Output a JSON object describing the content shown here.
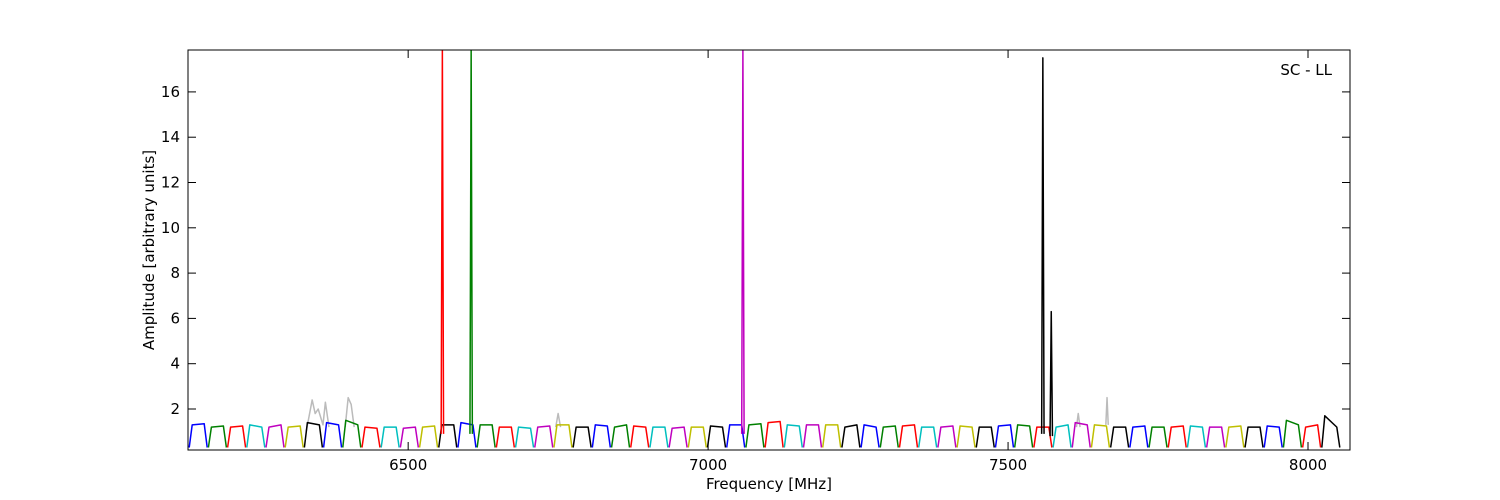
{
  "chart_data": {
    "type": "line",
    "xlabel": "Frequency [MHz]",
    "ylabel": "Amplitude [arbitrary units]",
    "annotation": "SC - LL",
    "xlim": [
      6133,
      8070
    ],
    "ylim": [
      0.19,
      17.85
    ],
    "xticks": [
      6500,
      7000,
      7500,
      8000
    ],
    "yticks": [
      2,
      4,
      6,
      8,
      10,
      12,
      14,
      16
    ],
    "series": [
      {
        "color": "#bbbbbb",
        "x": [
          6330,
          6340,
          6345,
          6350,
          6358,
          6362,
          6368
        ],
        "values": [
          1.0,
          2.4,
          1.8,
          2.0,
          1.3,
          2.3,
          1.2
        ]
      },
      {
        "color": "#bbbbbb",
        "x": [
          6395,
          6400,
          6405,
          6410
        ],
        "values": [
          1.2,
          2.5,
          2.2,
          1.2
        ]
      },
      {
        "color": "#bbbbbb",
        "x": [
          6746,
          6750,
          6754
        ],
        "values": [
          1.2,
          1.8,
          1.2
        ]
      },
      {
        "color": "#bbbbbb",
        "x": [
          7614,
          7617,
          7620
        ],
        "values": [
          1.2,
          1.8,
          1.2
        ]
      },
      {
        "color": "#bbbbbb",
        "x": [
          7663,
          7665,
          7667
        ],
        "values": [
          1.3,
          2.5,
          1.3
        ]
      },
      {
        "color": "#0000ff",
        "x": [
          6135,
          6140,
          6160,
          6165
        ],
        "values": [
          0.3,
          1.3,
          1.35,
          0.3
        ]
      },
      {
        "color": "#008000",
        "x": [
          6167,
          6172,
          6192,
          6197
        ],
        "values": [
          0.3,
          1.2,
          1.25,
          0.3
        ]
      },
      {
        "color": "#ff0000",
        "x": [
          6199,
          6204,
          6224,
          6229
        ],
        "values": [
          0.3,
          1.2,
          1.25,
          0.3
        ]
      },
      {
        "color": "#00bfbf",
        "x": [
          6231,
          6236,
          6256,
          6261
        ],
        "values": [
          0.3,
          1.3,
          1.2,
          0.3
        ]
      },
      {
        "color": "#bf00bf",
        "x": [
          6263,
          6268,
          6288,
          6293
        ],
        "values": [
          0.3,
          1.2,
          1.3,
          0.3
        ]
      },
      {
        "color": "#bfbf00",
        "x": [
          6295,
          6300,
          6320,
          6325
        ],
        "values": [
          0.3,
          1.2,
          1.25,
          0.3
        ]
      },
      {
        "color": "#000000",
        "x": [
          6327,
          6332,
          6352,
          6357
        ],
        "values": [
          0.3,
          1.4,
          1.3,
          0.3
        ]
      },
      {
        "color": "#0000ff",
        "x": [
          6359,
          6364,
          6384,
          6389
        ],
        "values": [
          0.3,
          1.4,
          1.3,
          0.3
        ]
      },
      {
        "color": "#008000",
        "x": [
          6391,
          6396,
          6416,
          6421
        ],
        "values": [
          0.3,
          1.5,
          1.3,
          0.3
        ]
      },
      {
        "color": "#ff0000",
        "x": [
          6423,
          6428,
          6448,
          6453
        ],
        "values": [
          0.3,
          1.2,
          1.15,
          0.3
        ]
      },
      {
        "color": "#00bfbf",
        "x": [
          6455,
          6460,
          6480,
          6485
        ],
        "values": [
          0.3,
          1.2,
          1.2,
          0.3
        ]
      },
      {
        "color": "#bf00bf",
        "x": [
          6487,
          6492,
          6512,
          6517
        ],
        "values": [
          0.3,
          1.15,
          1.2,
          0.3
        ]
      },
      {
        "color": "#bfbf00",
        "x": [
          6519,
          6524,
          6544,
          6549
        ],
        "values": [
          0.3,
          1.2,
          1.25,
          0.3
        ]
      },
      {
        "color": "#000000",
        "x": [
          6551,
          6556,
          6576,
          6581
        ],
        "values": [
          0.3,
          1.3,
          1.3,
          0.3
        ]
      },
      {
        "color": "#0000ff",
        "x": [
          6583,
          6588,
          6608,
          6613
        ],
        "values": [
          0.3,
          1.4,
          1.3,
          0.3
        ]
      },
      {
        "color": "#008000",
        "x": [
          6615,
          6620,
          6640,
          6645
        ],
        "values": [
          0.3,
          1.3,
          1.3,
          0.3
        ]
      },
      {
        "color": "#ff0000",
        "x": [
          6647,
          6652,
          6672,
          6677
        ],
        "values": [
          0.3,
          1.2,
          1.2,
          0.3
        ]
      },
      {
        "color": "#00bfbf",
        "x": [
          6679,
          6684,
          6704,
          6709
        ],
        "values": [
          0.3,
          1.2,
          1.15,
          0.3
        ]
      },
      {
        "color": "#bf00bf",
        "x": [
          6711,
          6716,
          6736,
          6741
        ],
        "values": [
          0.3,
          1.2,
          1.25,
          0.3
        ]
      },
      {
        "color": "#bfbf00",
        "x": [
          6743,
          6748,
          6768,
          6773
        ],
        "values": [
          0.3,
          1.3,
          1.3,
          0.3
        ]
      },
      {
        "color": "#000000",
        "x": [
          6775,
          6780,
          6800,
          6805
        ],
        "values": [
          0.3,
          1.2,
          1.2,
          0.3
        ]
      },
      {
        "color": "#0000ff",
        "x": [
          6807,
          6812,
          6832,
          6837
        ],
        "values": [
          0.3,
          1.3,
          1.25,
          0.3
        ]
      },
      {
        "color": "#008000",
        "x": [
          6839,
          6844,
          6864,
          6869
        ],
        "values": [
          0.3,
          1.2,
          1.3,
          0.3
        ]
      },
      {
        "color": "#ff0000",
        "x": [
          6871,
          6876,
          6896,
          6901
        ],
        "values": [
          0.3,
          1.25,
          1.2,
          0.3
        ]
      },
      {
        "color": "#00bfbf",
        "x": [
          6903,
          6908,
          6928,
          6933
        ],
        "values": [
          0.3,
          1.2,
          1.2,
          0.3
        ]
      },
      {
        "color": "#bf00bf",
        "x": [
          6935,
          6940,
          6960,
          6965
        ],
        "values": [
          0.3,
          1.15,
          1.2,
          0.3
        ]
      },
      {
        "color": "#bfbf00",
        "x": [
          6967,
          6972,
          6992,
          6997
        ],
        "values": [
          0.3,
          1.2,
          1.2,
          0.3
        ]
      },
      {
        "color": "#000000",
        "x": [
          6999,
          7004,
          7024,
          7029
        ],
        "values": [
          0.3,
          1.25,
          1.2,
          0.3
        ]
      },
      {
        "color": "#0000ff",
        "x": [
          7031,
          7036,
          7056,
          7061
        ],
        "values": [
          0.3,
          1.3,
          1.3,
          0.3
        ]
      },
      {
        "color": "#008000",
        "x": [
          7063,
          7068,
          7088,
          7093
        ],
        "values": [
          0.3,
          1.3,
          1.35,
          0.3
        ]
      },
      {
        "color": "#ff0000",
        "x": [
          7095,
          7100,
          7120,
          7125
        ],
        "values": [
          0.3,
          1.4,
          1.45,
          0.3
        ]
      },
      {
        "color": "#00bfbf",
        "x": [
          7127,
          7132,
          7152,
          7157
        ],
        "values": [
          0.3,
          1.3,
          1.25,
          0.3
        ]
      },
      {
        "color": "#bf00bf",
        "x": [
          7159,
          7164,
          7184,
          7189
        ],
        "values": [
          0.3,
          1.3,
          1.3,
          0.3
        ]
      },
      {
        "color": "#bfbf00",
        "x": [
          7191,
          7196,
          7216,
          7221
        ],
        "values": [
          0.3,
          1.3,
          1.3,
          0.3
        ]
      },
      {
        "color": "#000000",
        "x": [
          7223,
          7228,
          7248,
          7253
        ],
        "values": [
          0.3,
          1.2,
          1.3,
          0.3
        ]
      },
      {
        "color": "#0000ff",
        "x": [
          7255,
          7260,
          7280,
          7285
        ],
        "values": [
          0.3,
          1.3,
          1.2,
          0.3
        ]
      },
      {
        "color": "#008000",
        "x": [
          7287,
          7292,
          7312,
          7317
        ],
        "values": [
          0.3,
          1.2,
          1.25,
          0.3
        ]
      },
      {
        "color": "#ff0000",
        "x": [
          7319,
          7324,
          7344,
          7349
        ],
        "values": [
          0.3,
          1.25,
          1.3,
          0.3
        ]
      },
      {
        "color": "#00bfbf",
        "x": [
          7351,
          7356,
          7376,
          7381
        ],
        "values": [
          0.3,
          1.2,
          1.2,
          0.3
        ]
      },
      {
        "color": "#bf00bf",
        "x": [
          7383,
          7388,
          7408,
          7413
        ],
        "values": [
          0.3,
          1.2,
          1.25,
          0.3
        ]
      },
      {
        "color": "#bfbf00",
        "x": [
          7415,
          7420,
          7440,
          7445
        ],
        "values": [
          0.3,
          1.25,
          1.2,
          0.3
        ]
      },
      {
        "color": "#000000",
        "x": [
          7447,
          7452,
          7472,
          7477
        ],
        "values": [
          0.3,
          1.2,
          1.2,
          0.3
        ]
      },
      {
        "color": "#0000ff",
        "x": [
          7479,
          7484,
          7504,
          7509
        ],
        "values": [
          0.3,
          1.25,
          1.3,
          0.3
        ]
      },
      {
        "color": "#008000",
        "x": [
          7511,
          7516,
          7536,
          7541
        ],
        "values": [
          0.3,
          1.3,
          1.25,
          0.3
        ]
      },
      {
        "color": "#ff0000",
        "x": [
          7543,
          7548,
          7568,
          7573
        ],
        "values": [
          0.3,
          1.2,
          1.2,
          0.3
        ]
      },
      {
        "color": "#00bfbf",
        "x": [
          7575,
          7580,
          7600,
          7605
        ],
        "values": [
          0.3,
          1.2,
          1.3,
          0.3
        ]
      },
      {
        "color": "#bf00bf",
        "x": [
          7607,
          7612,
          7632,
          7637
        ],
        "values": [
          0.3,
          1.4,
          1.3,
          0.3
        ]
      },
      {
        "color": "#bfbf00",
        "x": [
          7639,
          7644,
          7664,
          7669
        ],
        "values": [
          0.3,
          1.3,
          1.25,
          0.3
        ]
      },
      {
        "color": "#000000",
        "x": [
          7671,
          7676,
          7696,
          7701
        ],
        "values": [
          0.3,
          1.2,
          1.2,
          0.3
        ]
      },
      {
        "color": "#0000ff",
        "x": [
          7703,
          7708,
          7728,
          7733
        ],
        "values": [
          0.3,
          1.2,
          1.25,
          0.3
        ]
      },
      {
        "color": "#008000",
        "x": [
          7735,
          7740,
          7760,
          7765
        ],
        "values": [
          0.3,
          1.2,
          1.2,
          0.3
        ]
      },
      {
        "color": "#ff0000",
        "x": [
          7767,
          7772,
          7792,
          7797
        ],
        "values": [
          0.3,
          1.2,
          1.25,
          0.3
        ]
      },
      {
        "color": "#00bfbf",
        "x": [
          7799,
          7804,
          7824,
          7829
        ],
        "values": [
          0.3,
          1.25,
          1.2,
          0.3
        ]
      },
      {
        "color": "#bf00bf",
        "x": [
          7831,
          7836,
          7856,
          7861
        ],
        "values": [
          0.3,
          1.2,
          1.2,
          0.3
        ]
      },
      {
        "color": "#bfbf00",
        "x": [
          7863,
          7868,
          7888,
          7893
        ],
        "values": [
          0.3,
          1.2,
          1.25,
          0.3
        ]
      },
      {
        "color": "#000000",
        "x": [
          7895,
          7900,
          7920,
          7925
        ],
        "values": [
          0.3,
          1.2,
          1.2,
          0.3
        ]
      },
      {
        "color": "#0000ff",
        "x": [
          7927,
          7932,
          7952,
          7957
        ],
        "values": [
          0.3,
          1.25,
          1.2,
          0.3
        ]
      },
      {
        "color": "#008000",
        "x": [
          7959,
          7964,
          7984,
          7989
        ],
        "values": [
          0.3,
          1.5,
          1.3,
          0.3
        ]
      },
      {
        "color": "#ff0000",
        "x": [
          7991,
          7996,
          8016,
          8021
        ],
        "values": [
          0.3,
          1.2,
          1.3,
          0.3
        ]
      },
      {
        "color": "#000000",
        "x": [
          8023,
          8028,
          8048,
          8053
        ],
        "values": [
          0.3,
          1.7,
          1.2,
          0.3
        ]
      },
      {
        "color": "#ff0000",
        "x": [
          6555,
          6557,
          6559
        ],
        "values": [
          0.9,
          17.85,
          0.9
        ]
      },
      {
        "color": "#008000",
        "x": [
          6603,
          6605,
          6607
        ],
        "values": [
          0.9,
          17.85,
          0.9
        ]
      },
      {
        "color": "#bf00bf",
        "x": [
          7056,
          7058,
          7060
        ],
        "values": [
          0.9,
          17.85,
          0.9
        ]
      },
      {
        "color": "#000000",
        "x": [
          7556,
          7558,
          7560
        ],
        "values": [
          0.9,
          17.5,
          0.9
        ]
      },
      {
        "color": "#000000",
        "x": [
          7570,
          7572,
          7574
        ],
        "values": [
          0.8,
          6.3,
          0.8
        ]
      }
    ]
  }
}
